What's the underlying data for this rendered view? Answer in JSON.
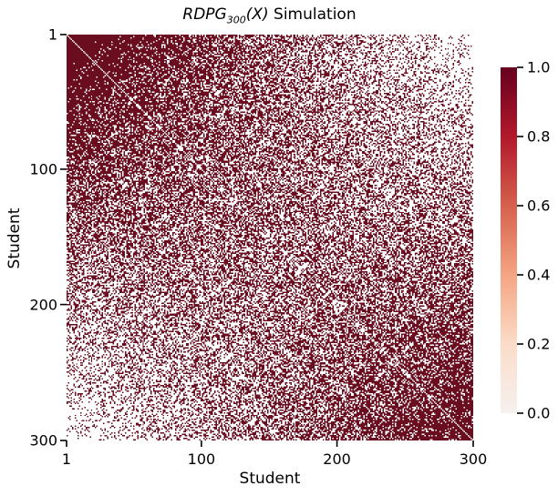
{
  "chart_data": {
    "type": "heatmap",
    "title": {
      "math_base": "RDPG",
      "math_sub": "300",
      "math_arg": "(X)",
      "suffix": " Simulation"
    },
    "xlabel": "Student",
    "ylabel": "Student",
    "n_nodes": 300,
    "xlim": [
      1,
      300
    ],
    "ylim": [
      1,
      300
    ],
    "x_tick_labels": [
      "1",
      "100",
      "200",
      "300"
    ],
    "y_tick_labels": [
      "1",
      "100",
      "200",
      "300"
    ],
    "x_tick_values": [
      1,
      100,
      200,
      300
    ],
    "y_tick_values": [
      1,
      100,
      200,
      300
    ],
    "values": "binary adjacency matrix of a 300-node random dot product graph; connection probability is high near the top-left and bottom-right corners and low near the top-right and bottom-left corners",
    "colorbar": {
      "range": [
        0.0,
        1.0
      ],
      "tick_labels": [
        "0.0",
        "0.2",
        "0.4",
        "0.6",
        "0.8",
        "1.0"
      ],
      "tick_values": [
        0.0,
        0.2,
        0.4,
        0.6,
        0.8,
        1.0
      ],
      "colormap": "Reds",
      "color_stops": [
        "#f6f1ef",
        "#fbdcc8",
        "#f4a582",
        "#d6604d",
        "#b2182b",
        "#67001f"
      ]
    },
    "colors": {
      "edge": "#6a0d1f",
      "no_edge": "#ffffff"
    },
    "grid": false,
    "legend": "colorbar-right"
  }
}
